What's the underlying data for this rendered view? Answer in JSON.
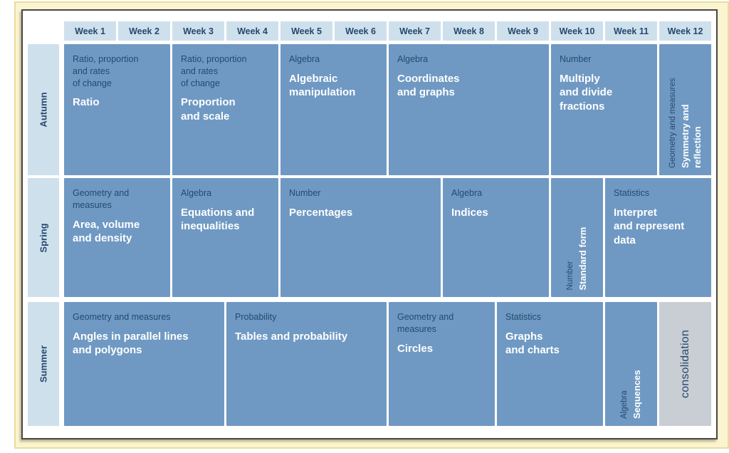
{
  "palette": {
    "page_bg": "#fbf4d0",
    "panel_border": "#474747",
    "light_bg": "#cfe0ed",
    "block_bg": "#6f99c3",
    "consolidation_bg": "#c9ced4",
    "navy_text": "#26496e",
    "title_text": "#ffffff"
  },
  "week_header": [
    "Week 1",
    "Week 2",
    "Week 3",
    "Week 4",
    "Week 5",
    "Week 6",
    "Week 7",
    "Week 8",
    "Week 9",
    "Week 10",
    "Week 11",
    "Week 12"
  ],
  "terms": [
    {
      "label": "Autumn",
      "blocks": [
        {
          "span": 2,
          "category": "Ratio, proportion\nand rates\nof change",
          "title": "Ratio"
        },
        {
          "span": 2,
          "category": "Ratio, proportion\nand rates\nof change",
          "title": "Proportion\nand scale"
        },
        {
          "span": 2,
          "category": "Algebra",
          "title": "Algebraic\nmanipulation"
        },
        {
          "span": 3,
          "category": "Algebra",
          "title": "Coordinates\nand graphs"
        },
        {
          "span": 2,
          "category": "Number",
          "title": "Multiply\nand divide\nfractions"
        },
        {
          "span": 1,
          "orientation": "vertical",
          "category": "Geometry and measures",
          "title": "Symmetry and\nreflection"
        }
      ]
    },
    {
      "label": "Spring",
      "blocks": [
        {
          "span": 2,
          "category": "Geometry and\nmeasures",
          "title": "Area, volume\nand density"
        },
        {
          "span": 2,
          "category": "Algebra",
          "title": "Equations and\ninequalities"
        },
        {
          "span": 3,
          "category": "Number",
          "title": "Percentages"
        },
        {
          "span": 2,
          "category": "Algebra",
          "title": "Indices"
        },
        {
          "span": 1,
          "orientation": "vertical",
          "category": "Number",
          "title": "Standard form"
        },
        {
          "span": 2,
          "category": "Statistics",
          "title": "Interpret\nand represent\ndata"
        }
      ]
    },
    {
      "label": "Summer",
      "blocks": [
        {
          "span": 3,
          "category": "Geometry and measures",
          "title": "Angles in parallel lines\nand polygons"
        },
        {
          "span": 3,
          "category": "Probability",
          "title": "Tables and probability"
        },
        {
          "span": 2,
          "category": "Geometry and\nmeasures",
          "title": "Circles"
        },
        {
          "span": 2,
          "category": "Statistics",
          "title": "Graphs\nand charts"
        },
        {
          "span": 1,
          "orientation": "vertical",
          "category": "Algebra",
          "title": "Sequences"
        },
        {
          "span": 1,
          "orientation": "vertical",
          "style": "consolidation",
          "title": "consolidation"
        }
      ]
    }
  ]
}
